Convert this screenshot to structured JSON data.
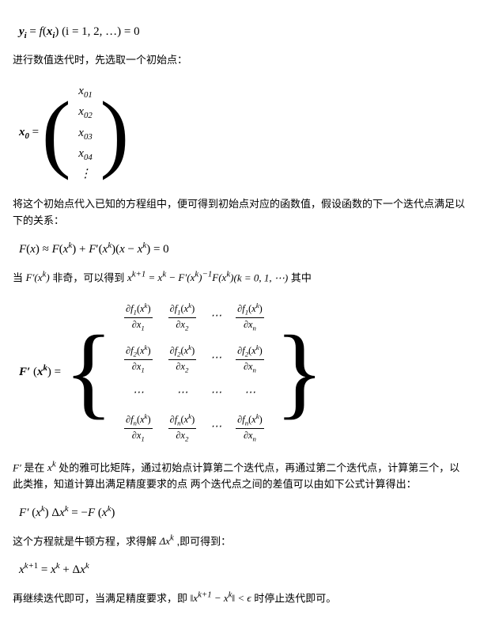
{
  "eq1": {
    "lhs": "y",
    "lhs_sub": "i",
    "fn": "f",
    "arg": "x",
    "arg_sub": "i",
    "range": "(i = 1, 2, …) = 0"
  },
  "p1": "进行数值迭代时，先选取一个初始点：",
  "eq2": {
    "lhs": "x",
    "lhs_sub": "0",
    "rows": [
      "x₀₁",
      "x₀₂",
      "x₀₃",
      "x₀₄",
      "⋮"
    ]
  },
  "p2": "将这个初始点代入已知的方程组中，便可得到初始点对应的函数值，假设函数的下一个迭代点满足以下的关系：",
  "eq3": "F(x) ≈ F(xᵏ) + F′(xᵏ)(x − xᵏ) = 0",
  "p3_pre": "当 ",
  "p3_Fk": "F′(xᵏ)",
  "p3_mid": " 非奇，可以得到 ",
  "p3_eq": "xᵏ⁺¹ = xᵏ − F′(xᵏ)⁻¹F(xᵏ)",
  "p3_post": "(k = 0, 1, ⋯) 其中",
  "jacobian": {
    "lhs": "F′ (xᵏ) =",
    "rows": [
      [
        {
          "num": "∂f₁(xᵏ)",
          "den": "∂x₁"
        },
        {
          "num": "∂f₁(xᵏ)",
          "den": "∂x₂"
        },
        "⋯",
        {
          "num": "∂f₁(xᵏ)",
          "den": "∂xₙ"
        }
      ],
      [
        {
          "num": "∂f₂(xᵏ)",
          "den": "∂x₁"
        },
        {
          "num": "∂f₂(xᵏ)",
          "den": "∂x₂"
        },
        "⋯",
        {
          "num": "∂f₂(xᵏ)",
          "den": "∂xₙ"
        }
      ],
      [
        "⋯",
        "⋯",
        "⋯",
        "⋯"
      ],
      [
        {
          "num": "∂fₙ(xᵏ)",
          "den": "∂x₁"
        },
        {
          "num": "∂fₙ(xᵏ)",
          "den": "∂x₂"
        },
        "⋯",
        {
          "num": "∂fₙ(xᵏ)",
          "den": "∂xₙ"
        }
      ]
    ]
  },
  "p4": "F′ 是在 xᵏ 处的雅可比矩阵，通过初始点计算第二个迭代点，再通过第二个迭代点，计算第三个，以此类推，知道计算出满足精度要求的点 两个迭代点之间的差值可以由如下公式计算得出：",
  "eq5": "F′ (xᵏ) Δxᵏ = −F (xᵏ)",
  "p5": "这个方程就是牛顿方程，求得解 Δxᵏ ,即可得到：",
  "eq6": "xᵏ⁺¹ = xᵏ + Δxᵏ",
  "p6_pre": "再继续迭代即可，当满足精度要求，即 ",
  "p6_norm": "‖xᵏ⁺¹ − xᵏ‖ < ϵ",
  "p6_post": " 时停止迭代即可。",
  "colors": {
    "text": "#000000",
    "bg": "#ffffff",
    "rule": "#000000"
  },
  "fontsizes": {
    "body": 14,
    "text": 13,
    "eq": 15
  }
}
